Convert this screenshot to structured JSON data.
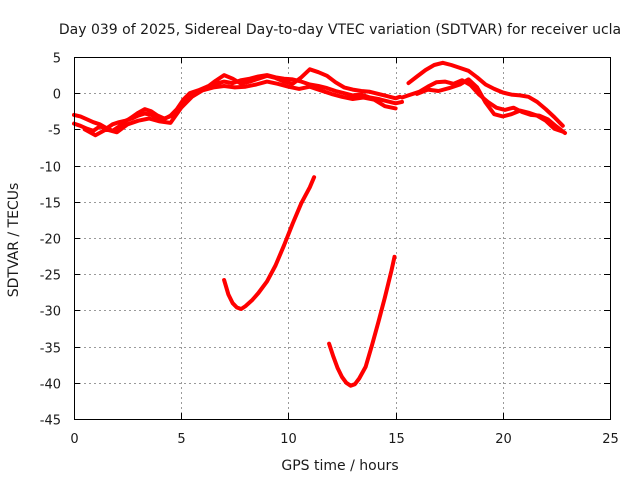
{
  "chart_data": {
    "type": "line",
    "title": "Day 039 of 2025, Sidereal Day-to-day VTEC variation (SDTVAR) for receiver ucla",
    "xlabel": "GPS time / hours",
    "ylabel": "SDTVAR / TECUs",
    "xlim": [
      0,
      25
    ],
    "ylim": [
      -45,
      5
    ],
    "xticks": [
      0,
      5,
      10,
      15,
      20,
      25
    ],
    "yticks": [
      5,
      0,
      -5,
      -10,
      -15,
      -20,
      -25,
      -30,
      -35,
      -40,
      -45
    ],
    "grid": true,
    "color": "#ff0000",
    "series": [
      {
        "name": "trace-1",
        "x": [
          0,
          0.3,
          0.6,
          0.9,
          1.2,
          1.5,
          1.8,
          2.1,
          2.4,
          2.7,
          3.0,
          3.3,
          3.6,
          3.9,
          4.2,
          4.5,
          4.8,
          5.1,
          5.4,
          5.8,
          6.2,
          6.6,
          7.0,
          7.4,
          7.8,
          8.2,
          8.6,
          9.0,
          9.4,
          9.8,
          10.2,
          10.6,
          11.0,
          11.4,
          11.8,
          12.2,
          12.6,
          13.0,
          13.4,
          13.8,
          14.2,
          14.6,
          15.0,
          15.3
        ],
        "y": [
          -4.2,
          -4.5,
          -4.9,
          -5.2,
          -4.6,
          -4.9,
          -4.3,
          -4.0,
          -3.8,
          -3.5,
          -3.1,
          -2.8,
          -3.0,
          -3.4,
          -3.6,
          -3.1,
          -2.2,
          -0.9,
          0.0,
          0.4,
          0.9,
          1.3,
          1.6,
          1.4,
          1.8,
          2.0,
          2.3,
          2.5,
          2.2,
          2.0,
          1.9,
          1.6,
          1.2,
          1.0,
          0.7,
          0.3,
          0.0,
          -0.3,
          -0.2,
          -0.6,
          -0.8,
          -1.1,
          -1.4,
          -1.2
        ]
      },
      {
        "name": "trace-2",
        "x": [
          0,
          0.3,
          0.6,
          0.9,
          1.2,
          1.5,
          1.8,
          2.1,
          2.4,
          2.7,
          3.0,
          3.3,
          3.6,
          3.9,
          4.2,
          4.5,
          4.8,
          5.1,
          5.4,
          5.8,
          6.2,
          6.6,
          7.0,
          7.4,
          7.8,
          8.2,
          8.6,
          9.0,
          9.4,
          9.8,
          10.2,
          10.6,
          11.0,
          11.4,
          11.8,
          12.2,
          12.6,
          13.0,
          13.4,
          13.8,
          14.2,
          14.6,
          15.0,
          15.2
        ],
        "y": [
          -3.0,
          -3.2,
          -3.6,
          -4.0,
          -4.3,
          -4.8,
          -5.2,
          -4.6,
          -3.9,
          -3.3,
          -2.7,
          -2.2,
          -2.5,
          -3.1,
          -3.5,
          -3.2,
          -2.8,
          -1.5,
          -0.6,
          0.2,
          0.8,
          1.7,
          2.5,
          2.0,
          1.3,
          1.6,
          2.0,
          2.4,
          2.1,
          1.6,
          1.3,
          2.2,
          3.3,
          2.9,
          2.4,
          1.5,
          0.8,
          0.5,
          0.3,
          0.2,
          -0.1,
          -0.4,
          -0.7,
          -0.5
        ]
      },
      {
        "name": "trace-3",
        "x": [
          0.5,
          1.0,
          1.5,
          2.0,
          2.5,
          3.0,
          3.5,
          4.0,
          4.5,
          5.0,
          5.5,
          6.0,
          6.5,
          7.0,
          7.5,
          8.0,
          8.5,
          9.0,
          9.5,
          10.0,
          10.5,
          11.0,
          11.5,
          12.0,
          12.5,
          13.0,
          13.5,
          14.0,
          14.5,
          15.0
        ],
        "y": [
          -5.0,
          -5.8,
          -5.0,
          -5.4,
          -4.3,
          -3.8,
          -3.5,
          -3.9,
          -4.1,
          -2.0,
          -0.5,
          0.4,
          0.8,
          1.0,
          0.8,
          0.9,
          1.2,
          1.6,
          1.3,
          0.9,
          0.6,
          0.9,
          0.4,
          -0.1,
          -0.5,
          -0.8,
          -0.6,
          -0.9,
          -1.8,
          -2.1
        ]
      },
      {
        "name": "trace-4",
        "x": [
          15.6,
          16.0,
          16.4,
          16.8,
          17.2,
          17.6,
          18.0,
          18.4,
          18.8,
          19.2,
          19.6,
          20.0,
          20.4,
          20.8,
          21.2,
          21.6,
          22.0,
          22.4,
          22.8
        ],
        "y": [
          1.4,
          2.3,
          3.2,
          3.9,
          4.2,
          3.9,
          3.5,
          3.1,
          2.2,
          1.2,
          0.6,
          0.1,
          -0.2,
          -0.3,
          -0.5,
          -1.2,
          -2.2,
          -3.3,
          -4.5
        ]
      },
      {
        "name": "trace-5",
        "x": [
          15.3,
          15.7,
          16.1,
          16.5,
          16.9,
          17.3,
          17.7,
          18.1,
          18.5,
          18.9,
          19.3,
          19.7,
          20.1,
          20.5,
          20.9,
          21.3,
          21.7,
          22.1,
          22.5,
          22.9
        ],
        "y": [
          -0.6,
          -0.2,
          0.2,
          0.9,
          1.5,
          1.6,
          1.3,
          1.8,
          1.1,
          -0.2,
          -1.2,
          -2.0,
          -2.3,
          -2.0,
          -2.6,
          -3.0,
          -3.1,
          -3.6,
          -4.6,
          -5.5
        ]
      },
      {
        "name": "trace-6",
        "x": [
          16.0,
          16.5,
          17.0,
          17.5,
          18.0,
          18.4,
          18.8,
          19.2,
          19.6,
          20.0,
          20.4,
          20.8,
          21.2,
          21.6,
          22.0,
          22.4,
          22.8
        ],
        "y": [
          -0.1,
          0.5,
          0.3,
          0.7,
          1.2,
          1.9,
          0.8,
          -1.3,
          -2.9,
          -3.2,
          -2.9,
          -2.4,
          -2.7,
          -3.1,
          -3.8,
          -4.9,
          -5.3
        ]
      },
      {
        "name": "trace-7",
        "x": [
          7.0,
          7.2,
          7.4,
          7.6,
          7.8,
          8.0,
          8.3,
          8.6,
          9.0,
          9.4,
          9.8,
          10.2,
          10.6,
          11.0,
          11.2
        ],
        "y": [
          -25.8,
          -27.8,
          -29.0,
          -29.6,
          -29.8,
          -29.4,
          -28.6,
          -27.6,
          -26.0,
          -23.8,
          -21.0,
          -18.0,
          -15.2,
          -13.0,
          -11.6
        ]
      },
      {
        "name": "trace-8",
        "x": [
          11.9,
          12.1,
          12.3,
          12.5,
          12.7,
          12.9,
          13.1,
          13.3,
          13.6,
          13.9,
          14.2,
          14.5,
          14.8,
          14.95
        ],
        "y": [
          -34.6,
          -36.4,
          -38.0,
          -39.2,
          -40.0,
          -40.4,
          -40.2,
          -39.4,
          -37.8,
          -34.8,
          -31.6,
          -28.2,
          -24.6,
          -22.6
        ]
      }
    ]
  }
}
